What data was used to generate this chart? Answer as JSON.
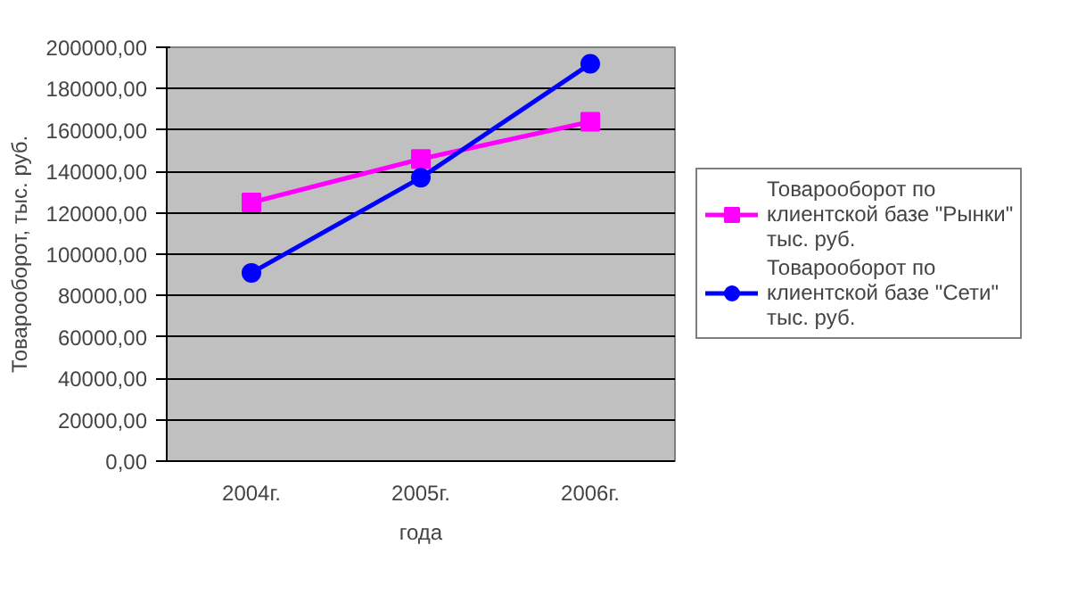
{
  "chart_data": {
    "type": "line",
    "xlabel": "года",
    "ylabel": "Товарооборот, тыс. руб.",
    "categories": [
      "2004г.",
      "2005г.",
      "2006г."
    ],
    "series": [
      {
        "name": "Товарооборот по клиентской базе \"Рынки\" тыс. руб.",
        "color": "#ff00ff",
        "marker": "square",
        "values": [
          125000,
          146000,
          164000
        ]
      },
      {
        "name": "Товарооборот по клиентской базе \"Сети\" тыс. руб.",
        "color": "#0000ff",
        "marker": "circle",
        "values": [
          91000,
          137000,
          192000
        ]
      }
    ],
    "ylim": [
      0,
      200000
    ],
    "yticks": [
      {
        "value": 0,
        "label": "0,00"
      },
      {
        "value": 20000,
        "label": "20000,00"
      },
      {
        "value": 40000,
        "label": "40000,00"
      },
      {
        "value": 60000,
        "label": "60000,00"
      },
      {
        "value": 80000,
        "label": "80000,00"
      },
      {
        "value": 100000,
        "label": "100000,00"
      },
      {
        "value": 120000,
        "label": "120000,00"
      },
      {
        "value": 140000,
        "label": "140000,00"
      },
      {
        "value": 160000,
        "label": "160000,00"
      },
      {
        "value": 180000,
        "label": "180000,00"
      },
      {
        "value": 200000,
        "label": "200000,00"
      }
    ],
    "grid": "y",
    "legend": "right",
    "line_style": "solid"
  }
}
